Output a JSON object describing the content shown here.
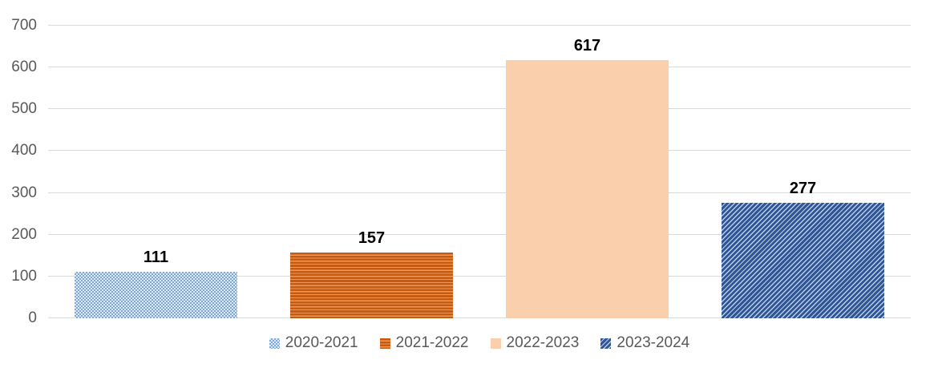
{
  "chart_data": {
    "type": "bar",
    "title": "",
    "xlabel": "",
    "ylabel": "",
    "categories": [
      "2020-2021",
      "2021-2022",
      "2022-2023",
      "2023-2024"
    ],
    "values": [
      111,
      157,
      617,
      277
    ],
    "data_labels": [
      "111",
      "157",
      "617",
      "277"
    ],
    "ylim": [
      0,
      700
    ],
    "yticks": [
      0,
      100,
      200,
      300,
      400,
      500,
      600,
      700
    ],
    "grid": "horizontal",
    "legend_position": "bottom",
    "series_styles": [
      {
        "name": "2020-2021",
        "pattern": "dotted-checker",
        "colors": [
          "#7FA8DC",
          "#DEE9F8"
        ]
      },
      {
        "name": "2021-2022",
        "pattern": "horizontal-stripes",
        "colors": [
          "#C55A11",
          "#F0985C"
        ]
      },
      {
        "name": "2022-2023",
        "pattern": "solid",
        "colors": [
          "#F9CFAC"
        ]
      },
      {
        "name": "2023-2024",
        "pattern": "diagonal-stripes-up",
        "colors": [
          "#2E5696",
          "#BDCEE7"
        ]
      }
    ],
    "axis_label_color": "#595959",
    "gridline_color": "#D9D9D9",
    "value_label_color": "#000000"
  }
}
